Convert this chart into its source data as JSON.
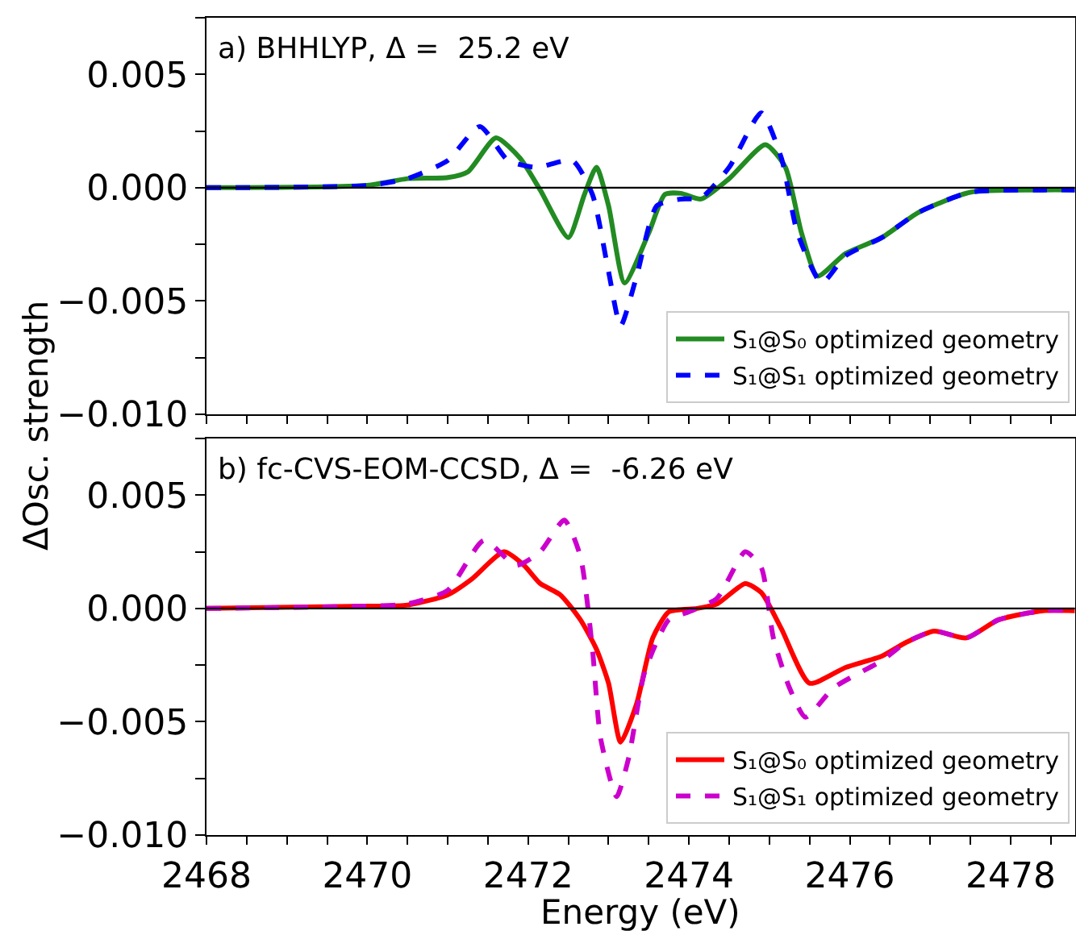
{
  "chart_data": [
    {
      "type": "line",
      "title": "a) BHHLYP, Δ =  25.2 eV",
      "tick_labels": "y",
      "legend": "bottom right",
      "grid": false,
      "xlim": [
        2468,
        2478.8
      ],
      "xticks": [
        {
          "value": 2468,
          "label": null
        },
        {
          "value": 2468.5,
          "label": null
        },
        {
          "value": 2469,
          "label": null
        },
        {
          "value": 2469.5,
          "label": null
        },
        {
          "value": 2470,
          "label": null
        },
        {
          "value": 2470.5,
          "label": null
        },
        {
          "value": 2471,
          "label": null
        },
        {
          "value": 2471.5,
          "label": null
        },
        {
          "value": 2472,
          "label": null
        },
        {
          "value": 2472.5,
          "label": null
        },
        {
          "value": 2473,
          "label": null
        },
        {
          "value": 2473.5,
          "label": null
        },
        {
          "value": 2474,
          "label": null
        },
        {
          "value": 2474.5,
          "label": null
        },
        {
          "value": 2475,
          "label": null
        },
        {
          "value": 2475.5,
          "label": null
        },
        {
          "value": 2476,
          "label": null
        },
        {
          "value": 2476.5,
          "label": null
        },
        {
          "value": 2477,
          "label": null
        },
        {
          "value": 2477.5,
          "label": null
        },
        {
          "value": 2478,
          "label": null
        },
        {
          "value": 2478.5,
          "label": null
        }
      ],
      "ylim": [
        -0.01,
        0.0075
      ],
      "yticks": [
        {
          "value": -0.01,
          "label": "−0.010"
        },
        {
          "value": -0.0075,
          "label": null
        },
        {
          "value": -0.005,
          "label": "−0.005"
        },
        {
          "value": -0.0025,
          "label": null
        },
        {
          "value": 0,
          "label": "0.000"
        },
        {
          "value": 0.0025,
          "label": null
        },
        {
          "value": 0.005,
          "label": "0.005"
        },
        {
          "value": 0.0075,
          "label": null
        }
      ],
      "ref_lines": [
        {
          "axis": "y",
          "value": 0,
          "color": "#000000",
          "line_style": "solid"
        }
      ],
      "series": [
        {
          "name": "S₁@S₀ optimized geometry",
          "color": "#228b22",
          "line_style": "solid",
          "x": [
            2468,
            2470.0,
            2470.5,
            2471.0,
            2471.25,
            2471.6,
            2471.9,
            2472.15,
            2472.5,
            2472.7,
            2472.85,
            2473.0,
            2473.2,
            2473.5,
            2473.7,
            2473.9,
            2474.15,
            2474.5,
            2474.95,
            2475.2,
            2475.4,
            2475.6,
            2475.95,
            2476.4,
            2476.85,
            2477.5,
            2478.4,
            2478.8
          ],
          "values": [
            0,
            0.0001,
            0.0004,
            0.00045,
            0.0007,
            0.0022,
            0.0013,
            -0.0001,
            -0.0022,
            -0.0003,
            0.0009,
            -0.0008,
            -0.0042,
            -0.002,
            -0.0003,
            -0.00025,
            -0.0005,
            0.0004,
            0.0019,
            0.0009,
            -0.002,
            -0.0039,
            -0.0029,
            -0.0022,
            -0.0011,
            -0.0002,
            -0.0001,
            -0.0001
          ]
        },
        {
          "name": "S₁@S₁ optimized geometry",
          "color": "#0000ff",
          "line_style": "dashed",
          "x": [
            2468,
            2470.0,
            2470.5,
            2471.0,
            2471.4,
            2471.75,
            2472.1,
            2472.55,
            2472.8,
            2473.0,
            2473.15,
            2473.35,
            2473.6,
            2473.9,
            2474.15,
            2474.5,
            2474.9,
            2475.15,
            2475.35,
            2475.65,
            2475.95,
            2476.4,
            2476.85,
            2477.5,
            2478.4,
            2478.8
          ],
          "values": [
            0,
            0.0001,
            0.0004,
            0.0012,
            0.0027,
            0.0012,
            0.0009,
            0.0012,
            -0.0003,
            -0.0037,
            -0.0061,
            -0.0039,
            -0.0008,
            -0.0005,
            -0.00045,
            0.0009,
            0.0033,
            0.0013,
            -0.002,
            -0.0042,
            -0.003,
            -0.0022,
            -0.0011,
            -0.0002,
            -0.0001,
            -0.0001
          ]
        }
      ]
    },
    {
      "type": "line",
      "title": "b) fc-CVS-EOM-CCSD, Δ =  -6.26 eV",
      "xlabel": "Energy (eV)",
      "ylabel": "ΔOsc. strength",
      "legend": "bottom right",
      "grid": false,
      "xlim": [
        2468,
        2478.8
      ],
      "xticks": [
        {
          "value": 2468,
          "label": "2468"
        },
        {
          "value": 2468.5,
          "label": null
        },
        {
          "value": 2469,
          "label": null
        },
        {
          "value": 2469.5,
          "label": null
        },
        {
          "value": 2470,
          "label": "2470"
        },
        {
          "value": 2470.5,
          "label": null
        },
        {
          "value": 2471,
          "label": null
        },
        {
          "value": 2471.5,
          "label": null
        },
        {
          "value": 2472,
          "label": "2472"
        },
        {
          "value": 2472.5,
          "label": null
        },
        {
          "value": 2473,
          "label": null
        },
        {
          "value": 2473.5,
          "label": null
        },
        {
          "value": 2474,
          "label": "2474"
        },
        {
          "value": 2474.5,
          "label": null
        },
        {
          "value": 2475,
          "label": null
        },
        {
          "value": 2475.5,
          "label": null
        },
        {
          "value": 2476,
          "label": "2476"
        },
        {
          "value": 2476.5,
          "label": null
        },
        {
          "value": 2477,
          "label": null
        },
        {
          "value": 2477.5,
          "label": null
        },
        {
          "value": 2478,
          "label": "2478"
        },
        {
          "value": 2478.5,
          "label": null
        }
      ],
      "ylim": [
        -0.01,
        0.0075
      ],
      "yticks": [
        {
          "value": -0.01,
          "label": "−0.010"
        },
        {
          "value": -0.0075,
          "label": null
        },
        {
          "value": -0.005,
          "label": "−0.005"
        },
        {
          "value": -0.0025,
          "label": null
        },
        {
          "value": 0,
          "label": "0.000"
        },
        {
          "value": 0.0025,
          "label": null
        },
        {
          "value": 0.005,
          "label": "0.005"
        },
        {
          "value": 0.0075,
          "label": null
        }
      ],
      "ref_lines": [
        {
          "axis": "y",
          "value": 0,
          "color": "#000000",
          "line_style": "solid"
        }
      ],
      "series": [
        {
          "name": "S₁@S₀ optimized geometry",
          "color": "#ff0000",
          "line_style": "solid",
          "x": [
            2468,
            2470.0,
            2470.5,
            2471.0,
            2471.3,
            2471.7,
            2471.95,
            2472.15,
            2472.4,
            2472.65,
            2472.85,
            2473.0,
            2473.15,
            2473.35,
            2473.55,
            2473.75,
            2474.1,
            2474.35,
            2474.7,
            2474.9,
            2475.15,
            2475.5,
            2475.95,
            2476.4,
            2476.7,
            2477.05,
            2477.45,
            2477.85,
            2478.4,
            2478.8
          ],
          "values": [
            0,
            0.0001,
            0.00015,
            0.0006,
            0.0013,
            0.0025,
            0.0019,
            0.0011,
            0.0006,
            -0.0005,
            -0.0018,
            -0.0033,
            -0.0059,
            -0.0042,
            -0.0013,
            -0.00015,
            0,
            0.0002,
            0.0011,
            0.0007,
            -0.0009,
            -0.0033,
            -0.0026,
            -0.0021,
            -0.0015,
            -0.001,
            -0.0013,
            -0.0005,
            -0.0001,
            -0.0001
          ]
        },
        {
          "name": "S₁@S₁ optimized geometry",
          "color": "#cc00cc",
          "line_style": "dashed",
          "x": [
            2468,
            2470.0,
            2470.5,
            2471.0,
            2471.45,
            2471.85,
            2472.15,
            2472.45,
            2472.65,
            2472.8,
            2472.9,
            2473.1,
            2473.25,
            2473.45,
            2473.75,
            2474.0,
            2474.35,
            2474.7,
            2474.9,
            2475.05,
            2475.25,
            2475.45,
            2475.8,
            2476.4,
            2476.7,
            2477.05,
            2477.45,
            2477.85,
            2478.4,
            2478.8
          ],
          "values": [
            0,
            0.0001,
            0.0002,
            0.0008,
            0.003,
            0.0019,
            0.0025,
            0.0039,
            0.0023,
            -0.0018,
            -0.0057,
            -0.0083,
            -0.0066,
            -0.0028,
            -0.0005,
            -0.00015,
            0.00045,
            0.0025,
            0.0018,
            -0.0013,
            -0.0035,
            -0.0048,
            -0.0035,
            -0.0023,
            -0.0015,
            -0.001,
            -0.0013,
            -0.0005,
            -0.0001,
            -0.0001
          ]
        }
      ]
    }
  ]
}
